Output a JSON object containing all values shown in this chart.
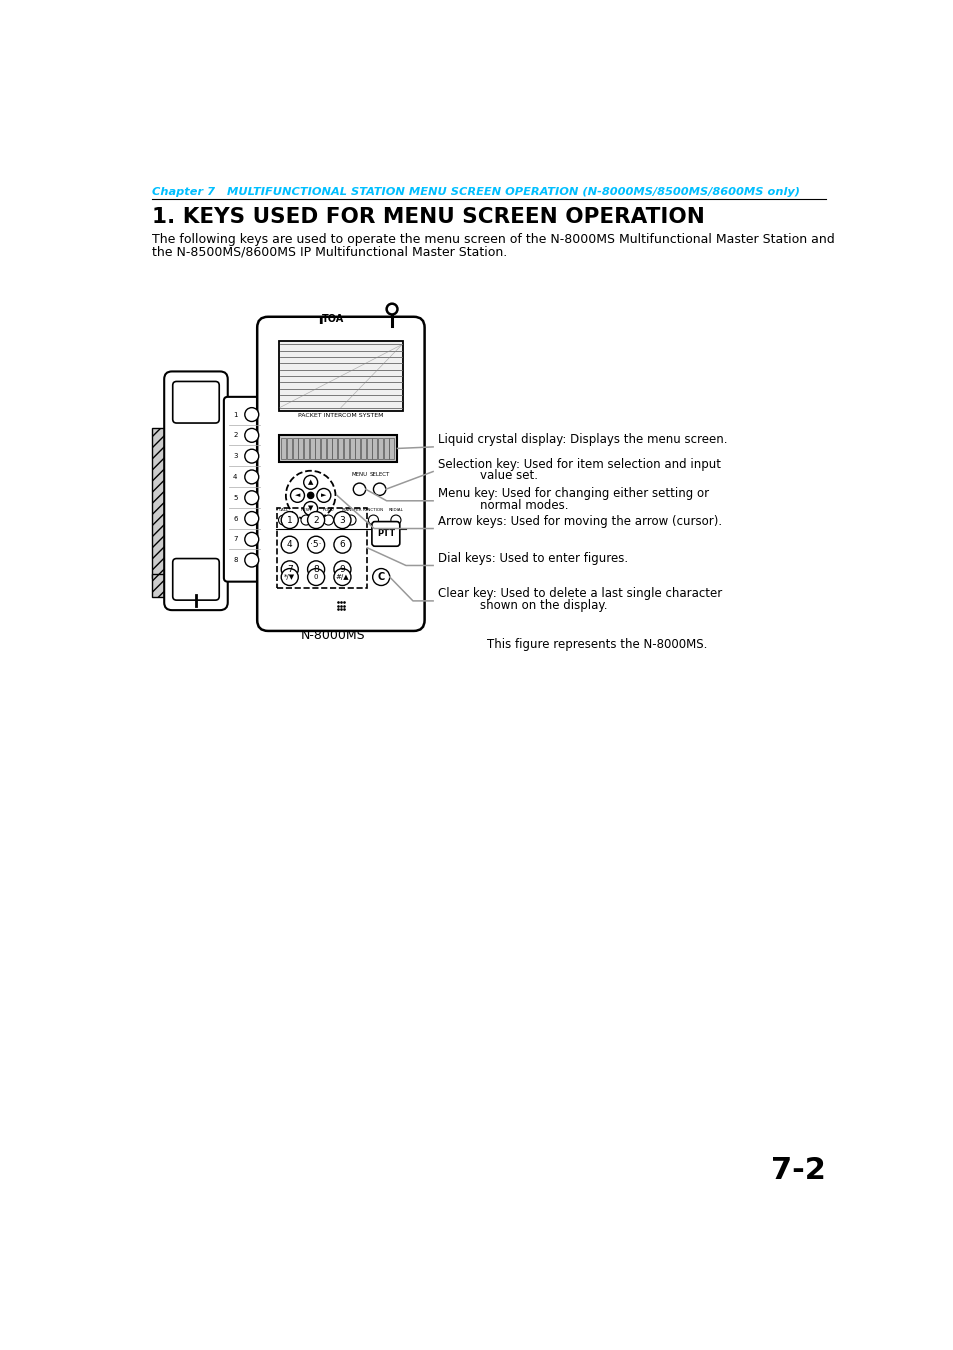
{
  "chapter_text": "Chapter 7   MULTIFUNCTIONAL STATION MENU SCREEN OPERATION (N-8000MS/8500MS/8600MS only)",
  "chapter_color": "#00BFFF",
  "title": "1. KEYS USED FOR MENU SCREEN OPERATION",
  "body_text_1": "The following keys are used to operate the menu screen of the N-8000MS Multifunctional Master Station and",
  "body_text_2": "the N-8500MS/8600MS IP Multifunctional Master Station.",
  "label1": "Liquid crystal display: Displays the menu screen.",
  "label2_line1": "Selection key: Used for item selection and input",
  "label2_line2": "value set.",
  "label3_line1": "Menu key: Used for changing either setting or",
  "label3_line2": "normal modes.",
  "label4": "Arrow keys: Used for moving the arrow (cursor).",
  "label5": "Dial keys: Used to enter figures.",
  "label6_line1": "Clear key: Used to delete a last single character",
  "label6_line2": "shown on the display.",
  "caption": "N-8000MS",
  "note": "This figure represents the N-8000MS.",
  "page_number": "7-2",
  "bg_color": "#ffffff",
  "text_color": "#000000",
  "line_color": "#999999"
}
